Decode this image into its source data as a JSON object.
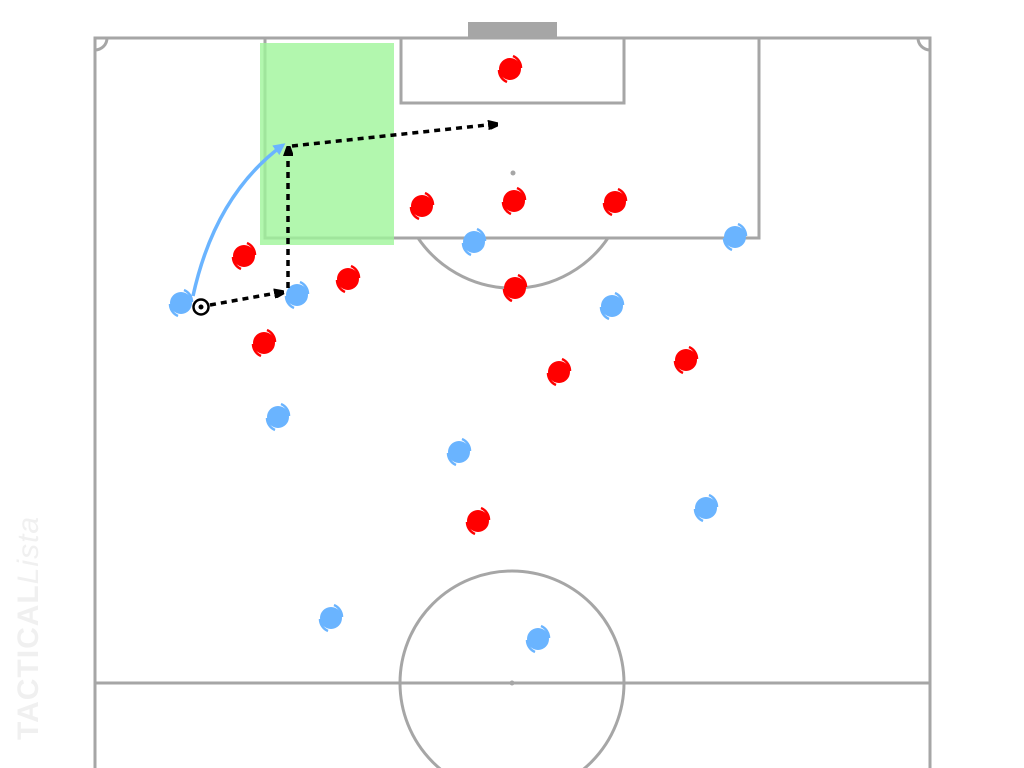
{
  "watermark": {
    "brand_bold": "TACTICAL",
    "brand_italic": "ista",
    "brand_l": "L"
  },
  "colors": {
    "pitch_lines": "#a6a6a6",
    "team_red": "#ff0000",
    "team_blue": "#6ab4ff",
    "highlight_zone": "#9ff59a",
    "pass_arrow": "#000000",
    "run_arrow": "#6ab4ff"
  },
  "teams": {
    "red_count": 11,
    "blue_count": 10
  },
  "icons": {
    "ball": "soccer-ball-icon",
    "player": "player-marker-icon"
  }
}
